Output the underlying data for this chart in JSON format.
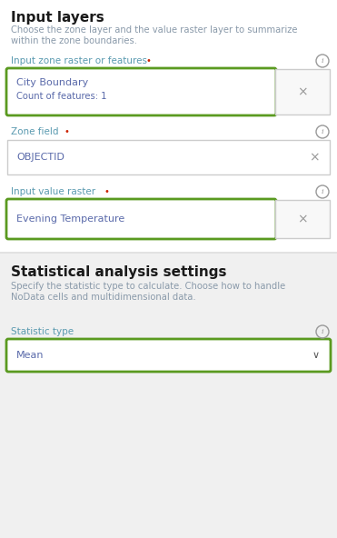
{
  "bg_color": "#f7f7f7",
  "section1_bg": "#ffffff",
  "section2_bg": "#f0f0f0",
  "title1": "Input layers",
  "title1_color": "#1a1a1a",
  "desc1_line1": "Choose the zone layer and the value raster layer to summarize",
  "desc1_line2": "within the zone boundaries.",
  "desc_color": "#8a9aaa",
  "label1": "Input zone raster or features",
  "label_color": "#5a9ab0",
  "dot_color": "#cc2200",
  "field1_main": "City Boundary",
  "field1_sub": "Count of features: 1",
  "field_text_color": "#5a6aaa",
  "green_border": "#5a9a20",
  "gray_border": "#cccccc",
  "label2": "Zone field",
  "field2_text": "OBJECTID",
  "label3": "Input value raster",
  "field3_text": "Evening Temperature",
  "title2": "Statistical analysis settings",
  "title2_color": "#1a1a1a",
  "desc2_line1": "Specify the statistic type to calculate. Choose how to handle",
  "desc2_line2": "NoData cells and multidimensional data.",
  "label4": "Statistic type",
  "field4_text": "Mean",
  "info_color": "#999999",
  "x_color": "#999999",
  "sep_color": "#dddddd",
  "chevron_color": "#555555"
}
